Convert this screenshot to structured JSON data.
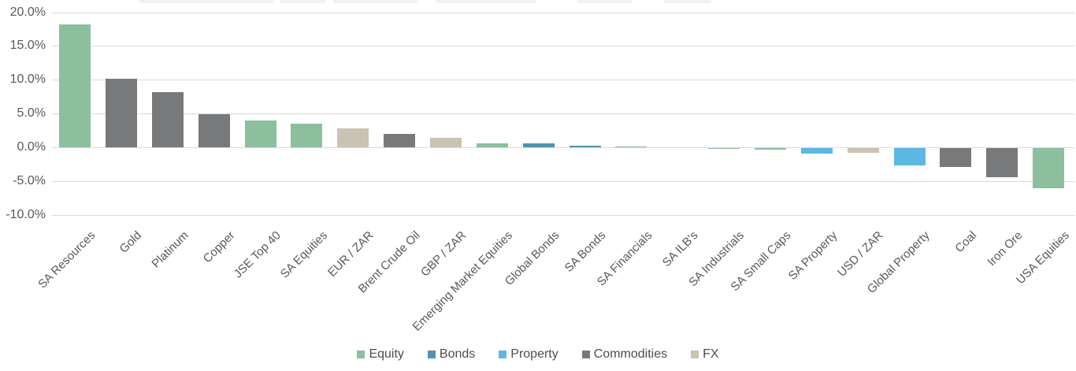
{
  "chart_data": {
    "type": "bar",
    "title": "",
    "xlabel": "",
    "ylabel": "",
    "ylim": [
      -10,
      20
    ],
    "grid": true,
    "categories": [
      "SA Resources",
      "Gold",
      "Platinum",
      "Copper",
      "JSE Top 40",
      "SA Equities",
      "EUR / ZAR",
      "Brent Crude Oil",
      "GBP / ZAR",
      "Emerging Market Equities",
      "Global Bonds",
      "SA Bonds",
      "SA Financials",
      "SA ILB's",
      "SA Industrials",
      "SA Small Caps",
      "SA Property",
      "USD / ZAR",
      "Global Property",
      "Coal",
      "Iron Ore",
      "USA Equities"
    ],
    "values": [
      18.2,
      10.1,
      8.2,
      4.9,
      4.0,
      3.5,
      2.8,
      2.0,
      1.4,
      0.6,
      0.55,
      0.25,
      0.15,
      0.0,
      -0.15,
      -0.25,
      -0.8,
      -0.7,
      -2.6,
      -2.8,
      -4.3,
      -6.0
    ],
    "asset_classes": [
      "Equity",
      "Commodities",
      "Commodities",
      "Commodities",
      "Equity",
      "Equity",
      "FX",
      "Commodities",
      "FX",
      "Equity",
      "Bonds",
      "Bonds",
      "Equity",
      "Bonds",
      "Equity",
      "Equity",
      "Property",
      "FX",
      "Property",
      "Commodities",
      "Commodities",
      "Equity"
    ],
    "colors": {
      "Equity": "#8CBF9E",
      "Bonds": "#4F93AE",
      "Property": "#5CB8E2",
      "Commodities": "#77797B",
      "FX": "#CAC2B3"
    },
    "y_ticks": [
      "20.0%",
      "15.0%",
      "10.0%",
      "5.0%",
      "0.0%",
      "-5.0%",
      "-10.0%"
    ],
    "y_tick_values": [
      20,
      15,
      10,
      5,
      0,
      -5,
      -10
    ],
    "legend": {
      "position": "bottom",
      "entries": [
        {
          "label": "Equity",
          "color": "#8CBF9E"
        },
        {
          "label": "Bonds",
          "color": "#4F93AE"
        },
        {
          "label": "Property",
          "color": "#5CB8E2"
        },
        {
          "label": "Commodities",
          "color": "#77797B"
        },
        {
          "label": "FX",
          "color": "#CAC2B3"
        }
      ]
    },
    "gridline_color": "#D9D9D9",
    "axis_label_color": "#595959"
  }
}
